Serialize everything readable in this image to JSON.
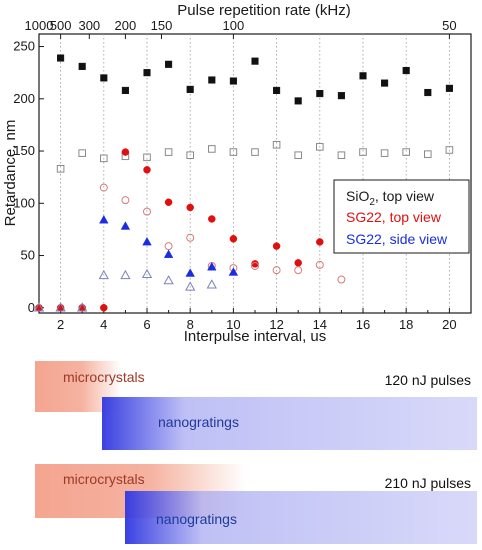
{
  "chart_data": {
    "type": "scatter",
    "xlabel": "Interpulse interval, us",
    "ylabel": "Retardance, nm",
    "top_axis_label": "Pulse repetition rate (kHz)",
    "xlim": [
      1,
      21
    ],
    "ylim": [
      -5,
      262
    ],
    "x_ticks": [
      2,
      4,
      6,
      8,
      10,
      12,
      14,
      16,
      18,
      20
    ],
    "y_ticks": [
      0,
      50,
      100,
      150,
      200,
      250
    ],
    "top_ticks": [
      {
        "label": "1000",
        "x": 1
      },
      {
        "label": "500",
        "x": 2
      },
      {
        "label": "300",
        "x": 3.33
      },
      {
        "label": "200",
        "x": 5
      },
      {
        "label": "150",
        "x": 6.67
      },
      {
        "label": "100",
        "x": 10
      },
      {
        "label": "50",
        "x": 20
      }
    ],
    "grid": "vertical dotted at even x",
    "legend_placement": "middle-right",
    "series": [
      {
        "name": "SiO2, top view",
        "name_base": "SiO",
        "name_sub": "2",
        "name_rest": ", top view",
        "marker": "square-filled",
        "color": "#111111",
        "points": [
          [
            2,
            239
          ],
          [
            3,
            231
          ],
          [
            4,
            220
          ],
          [
            5,
            208
          ],
          [
            6,
            225
          ],
          [
            7,
            233
          ],
          [
            8,
            209
          ],
          [
            9,
            218
          ],
          [
            10,
            217
          ],
          [
            11,
            236
          ],
          [
            12,
            208
          ],
          [
            13,
            198
          ],
          [
            14,
            205
          ],
          [
            15,
            203
          ],
          [
            16,
            222
          ],
          [
            17,
            215
          ],
          [
            18,
            227
          ],
          [
            19,
            206
          ],
          [
            20,
            210
          ]
        ]
      },
      {
        "name": "SiO2, side view",
        "marker": "square-open",
        "color": "#8a8a8a",
        "legend": false,
        "points": [
          [
            2,
            133
          ],
          [
            3,
            148
          ],
          [
            4,
            143
          ],
          [
            5,
            145
          ],
          [
            6,
            144
          ],
          [
            7,
            149
          ],
          [
            8,
            146
          ],
          [
            9,
            152
          ],
          [
            10,
            149
          ],
          [
            11,
            149
          ],
          [
            12,
            156
          ],
          [
            13,
            146
          ],
          [
            14,
            154
          ],
          [
            15,
            146
          ],
          [
            16,
            149
          ],
          [
            17,
            148
          ],
          [
            18,
            149
          ],
          [
            19,
            147
          ],
          [
            20,
            151
          ]
        ]
      },
      {
        "name": "SG22, top view",
        "marker": "circle-filled",
        "color": "#e01010",
        "points": [
          [
            1,
            0
          ],
          [
            2,
            0
          ],
          [
            3,
            0
          ],
          [
            4,
            0
          ],
          [
            5,
            149
          ],
          [
            6,
            132
          ],
          [
            7,
            101
          ],
          [
            8,
            96
          ],
          [
            9,
            85
          ],
          [
            10,
            66
          ],
          [
            11,
            42
          ],
          [
            12,
            59
          ],
          [
            13,
            43
          ],
          [
            14,
            63
          ]
        ]
      },
      {
        "name": "SG22, top view (open)",
        "marker": "circle-open",
        "color": "#d87a7a",
        "legend": false,
        "points": [
          [
            4,
            115
          ],
          [
            5,
            103
          ],
          [
            6,
            92
          ],
          [
            7,
            59
          ],
          [
            8,
            67
          ],
          [
            9,
            40
          ],
          [
            10,
            38
          ],
          [
            11,
            40
          ],
          [
            12,
            36
          ],
          [
            13,
            36
          ],
          [
            14,
            41
          ],
          [
            15,
            27
          ]
        ]
      },
      {
        "name": "SG22, side view",
        "marker": "triangle-filled",
        "color": "#1a2ee0",
        "points": [
          [
            4,
            84
          ],
          [
            5,
            78
          ],
          [
            6,
            63
          ],
          [
            7,
            51
          ],
          [
            8,
            33
          ],
          [
            9,
            39
          ],
          [
            10,
            34
          ]
        ]
      },
      {
        "name": "SG22, side view (open)",
        "marker": "triangle-open",
        "color": "#7d82b8",
        "legend": false,
        "points": [
          [
            1,
            0
          ],
          [
            2,
            0
          ],
          [
            3,
            0
          ],
          [
            4,
            31
          ],
          [
            5,
            31
          ],
          [
            6,
            32
          ],
          [
            7,
            26
          ],
          [
            8,
            20
          ],
          [
            9,
            22
          ]
        ]
      }
    ]
  },
  "bands": {
    "row1": {
      "pulse_label": "120 nJ pulses",
      "microcrystals": {
        "label": "microcrystals",
        "start_us": 0.8,
        "end_us": 4.8,
        "color": "#f3a08a"
      },
      "nanogratings": {
        "label": "nanogratings",
        "start_us": 3.9,
        "end_us": 21.3,
        "color": "#a9abf2"
      }
    },
    "row2": {
      "pulse_label": "210 nJ pulses",
      "microcrystals": {
        "label": "microcrystals",
        "start_us": 0.8,
        "end_us": 10.6,
        "color": "#f3a08a"
      },
      "nanogratings": {
        "label": "nanogratings",
        "start_us": 5.0,
        "end_us": 21.3,
        "color": "#a9abf2"
      }
    },
    "label_colors": {
      "microcrystals": "#a03828",
      "nanogratings": "#1f3a9a"
    }
  }
}
